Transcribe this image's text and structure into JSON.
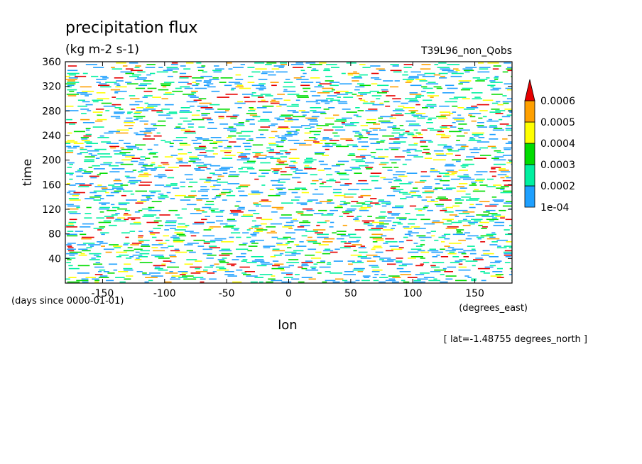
{
  "chart_data": {
    "type": "heatmap",
    "title": "precipitation flux",
    "subtitle": "(kg m-2 s-1)",
    "dataset_label": "T39L96_non_Qobs",
    "xlabel": "lon",
    "x_units": "(degrees_east)",
    "ylabel": "time",
    "y_units": "(days since 0000-01-01)",
    "footnote": "[ lat=-1.48755 degrees_north ]",
    "xlim": [
      -180,
      180
    ],
    "ylim": [
      0,
      360
    ],
    "x_ticks": [
      -150,
      -100,
      -50,
      0,
      50,
      100,
      150
    ],
    "x_tick_labels": [
      "-150",
      "-100",
      "-50",
      "0",
      "50",
      "100",
      "150"
    ],
    "y_ticks": [
      40,
      80,
      120,
      160,
      200,
      240,
      280,
      320,
      360
    ],
    "y_tick_labels": [
      "40",
      "80",
      "120",
      "160",
      "200",
      "240",
      "280",
      "320",
      "360"
    ],
    "colorbar": {
      "levels": [
        0.0001,
        0.0002,
        0.0003,
        0.0004,
        0.0005,
        0.0006
      ],
      "level_labels": [
        "1e-04",
        "0.0002",
        "0.0003",
        "0.0004",
        "0.0005",
        "0.0006"
      ],
      "colors": [
        "#1ea0ff",
        "#00f0a0",
        "#00dc00",
        "#ffff00",
        "#ffa000",
        "#e60000"
      ],
      "extend": "max"
    }
  }
}
